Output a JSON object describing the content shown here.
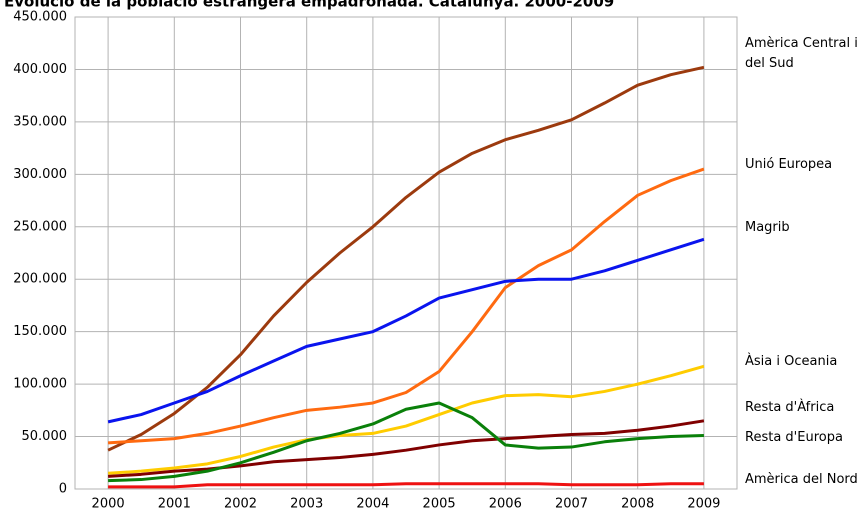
{
  "chart_data": {
    "type": "line",
    "title": "Evolució de la població estrangera empadronada. Catalunya. 2000-2009",
    "x": [
      2000,
      2000.5,
      2001,
      2001.5,
      2002,
      2002.5,
      2003,
      2003.5,
      2004,
      2004.5,
      2005,
      2005.5,
      2006,
      2006.5,
      2007,
      2007.5,
      2008,
      2008.5,
      2009
    ],
    "series": [
      {
        "name": "Amèrica Central i del Sud",
        "color": "#9c3a0e",
        "values": [
          37000,
          52000,
          72000,
          97000,
          128000,
          165000,
          197000,
          225000,
          250000,
          278000,
          302000,
          320000,
          333000,
          342000,
          352000,
          368000,
          385000,
          395000,
          402000
        ]
      },
      {
        "name": "Unió Europea",
        "color": "#ff6a10",
        "values": [
          44000,
          46000,
          48000,
          53000,
          60000,
          68000,
          75000,
          78000,
          82000,
          92000,
          112000,
          150000,
          192000,
          213000,
          228000,
          255000,
          280000,
          294000,
          305000
        ]
      },
      {
        "name": "Magrib",
        "color": "#0a14ee",
        "values": [
          64000,
          71000,
          82000,
          93000,
          108000,
          122000,
          136000,
          143000,
          150000,
          165000,
          182000,
          190000,
          198000,
          200000,
          200000,
          208000,
          218000,
          228000,
          238000
        ]
      },
      {
        "name": "Àsia i Oceania",
        "color": "#ffcc00",
        "values": [
          15000,
          17000,
          20000,
          24000,
          31000,
          40000,
          47000,
          51000,
          53000,
          60000,
          71000,
          82000,
          89000,
          90000,
          88000,
          93000,
          100000,
          108000,
          117000
        ]
      },
      {
        "name": "Resta d'Àfrica",
        "color": "#800000",
        "values": [
          12000,
          14000,
          17000,
          19000,
          22000,
          26000,
          28000,
          30000,
          33000,
          37000,
          42000,
          46000,
          48000,
          50000,
          52000,
          53000,
          56000,
          60000,
          65000
        ]
      },
      {
        "name": "Resta d'Europa",
        "color": "#0a800a",
        "values": [
          8000,
          9000,
          12000,
          17000,
          25000,
          35000,
          46000,
          53000,
          62000,
          76000,
          82000,
          68000,
          42000,
          39000,
          40000,
          45000,
          48000,
          50000,
          51000
        ]
      },
      {
        "name": "Amèrica del Nord",
        "color": "#ee1111",
        "values": [
          2000,
          2000,
          2000,
          4000,
          4000,
          4000,
          4000,
          4000,
          4000,
          5000,
          5000,
          5000,
          5000,
          5000,
          4000,
          4000,
          4000,
          5000,
          5000
        ]
      }
    ],
    "xlim": [
      1999.5,
      2009.5
    ],
    "xticks": [
      2000,
      2001,
      2002,
      2003,
      2004,
      2005,
      2006,
      2007,
      2008,
      2009
    ],
    "ylim": [
      0,
      450000
    ],
    "yticks": [
      0,
      {
        "value": 50000,
        "label": "50.000"
      },
      {
        "value": 100000,
        "label": "100.000"
      },
      {
        "value": 150000,
        "label": "150.000"
      },
      {
        "value": 200000,
        "label": "200.000"
      },
      {
        "value": 250000,
        "label": "250.000"
      },
      {
        "value": 300000,
        "label": "300.000"
      },
      {
        "value": 350000,
        "label": "350.000"
      },
      {
        "value": 400000,
        "label": "400.000"
      },
      {
        "value": 450000,
        "label": "450.000"
      }
    ],
    "grid": true
  }
}
